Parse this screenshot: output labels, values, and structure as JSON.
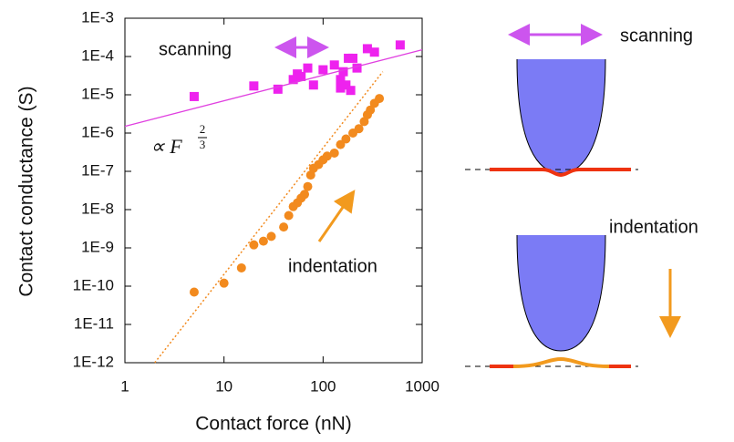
{
  "chart_data": {
    "type": "scatter",
    "xlabel": "Contact force (nN)",
    "ylabel": "Contact conductance (S)",
    "xscale": "log",
    "yscale": "log",
    "xlim": [
      1,
      1000
    ],
    "ylim": [
      1e-12,
      0.001
    ],
    "xticks": [
      1,
      10,
      100,
      1000
    ],
    "yticks": [
      {
        "value": 1e-12,
        "label": "1E-12"
      },
      {
        "value": 1e-11,
        "label": "1E-11"
      },
      {
        "value": 1e-10,
        "label": "1E-10"
      },
      {
        "value": 1e-09,
        "label": "1E-9"
      },
      {
        "value": 1e-08,
        "label": "1E-8"
      },
      {
        "value": 1e-07,
        "label": "1E-7"
      },
      {
        "value": 1e-06,
        "label": "1E-6"
      },
      {
        "value": 1e-05,
        "label": "1E-5"
      },
      {
        "value": 0.0001,
        "label": "1E-4"
      },
      {
        "value": 0.001,
        "label": "1E-3"
      }
    ],
    "grid": false,
    "formula": {
      "base": "∝ F",
      "numerator": "2",
      "denominator": "3"
    },
    "series": [
      {
        "name": "scanning",
        "color": "#ee22ee",
        "marker": "square",
        "x": [
          5,
          20,
          35,
          50,
          55,
          60,
          70,
          80,
          100,
          130,
          150,
          150,
          160,
          170,
          180,
          190,
          200,
          220,
          280,
          330,
          600
        ],
        "values": [
          9e-06,
          1.7e-05,
          1.4e-05,
          2.5e-05,
          3.5e-05,
          3e-05,
          5e-05,
          1.8e-05,
          4.5e-05,
          6e-05,
          2.5e-05,
          1.5e-05,
          4e-05,
          1.8e-05,
          9e-05,
          1.3e-05,
          9e-05,
          5e-05,
          0.00016,
          0.00013,
          0.0002
        ]
      },
      {
        "name": "indentation",
        "color": "#f28a1e",
        "marker": "circle",
        "x": [
          5,
          10,
          15,
          20,
          25,
          30,
          40,
          45,
          50,
          55,
          60,
          65,
          70,
          75,
          80,
          90,
          100,
          110,
          130,
          150,
          170,
          200,
          230,
          260,
          280,
          300,
          330,
          370
        ],
        "values": [
          7e-11,
          1.2e-10,
          3e-10,
          1.2e-09,
          1.5e-09,
          2e-09,
          3.5e-09,
          7e-09,
          1.2e-08,
          1.5e-08,
          2e-08,
          2.5e-08,
          4e-08,
          8e-08,
          1.2e-07,
          1.5e-07,
          2e-07,
          2.5e-07,
          3e-07,
          5e-07,
          7e-07,
          1e-06,
          1.3e-06,
          2e-06,
          3e-06,
          4e-06,
          6e-06,
          8e-06
        ]
      },
      {
        "color": "#e040e0",
        "marker": "line",
        "x": [
          1,
          1000
        ],
        "values": [
          1.5e-06,
          0.00015
        ]
      },
      {
        "color": "#f28a1e",
        "marker": "dotted-line",
        "x": [
          2,
          400
        ],
        "values": [
          1e-12,
          4e-05
        ]
      }
    ]
  },
  "diagram": {
    "labels": [
      "scanning",
      "indentation"
    ]
  }
}
